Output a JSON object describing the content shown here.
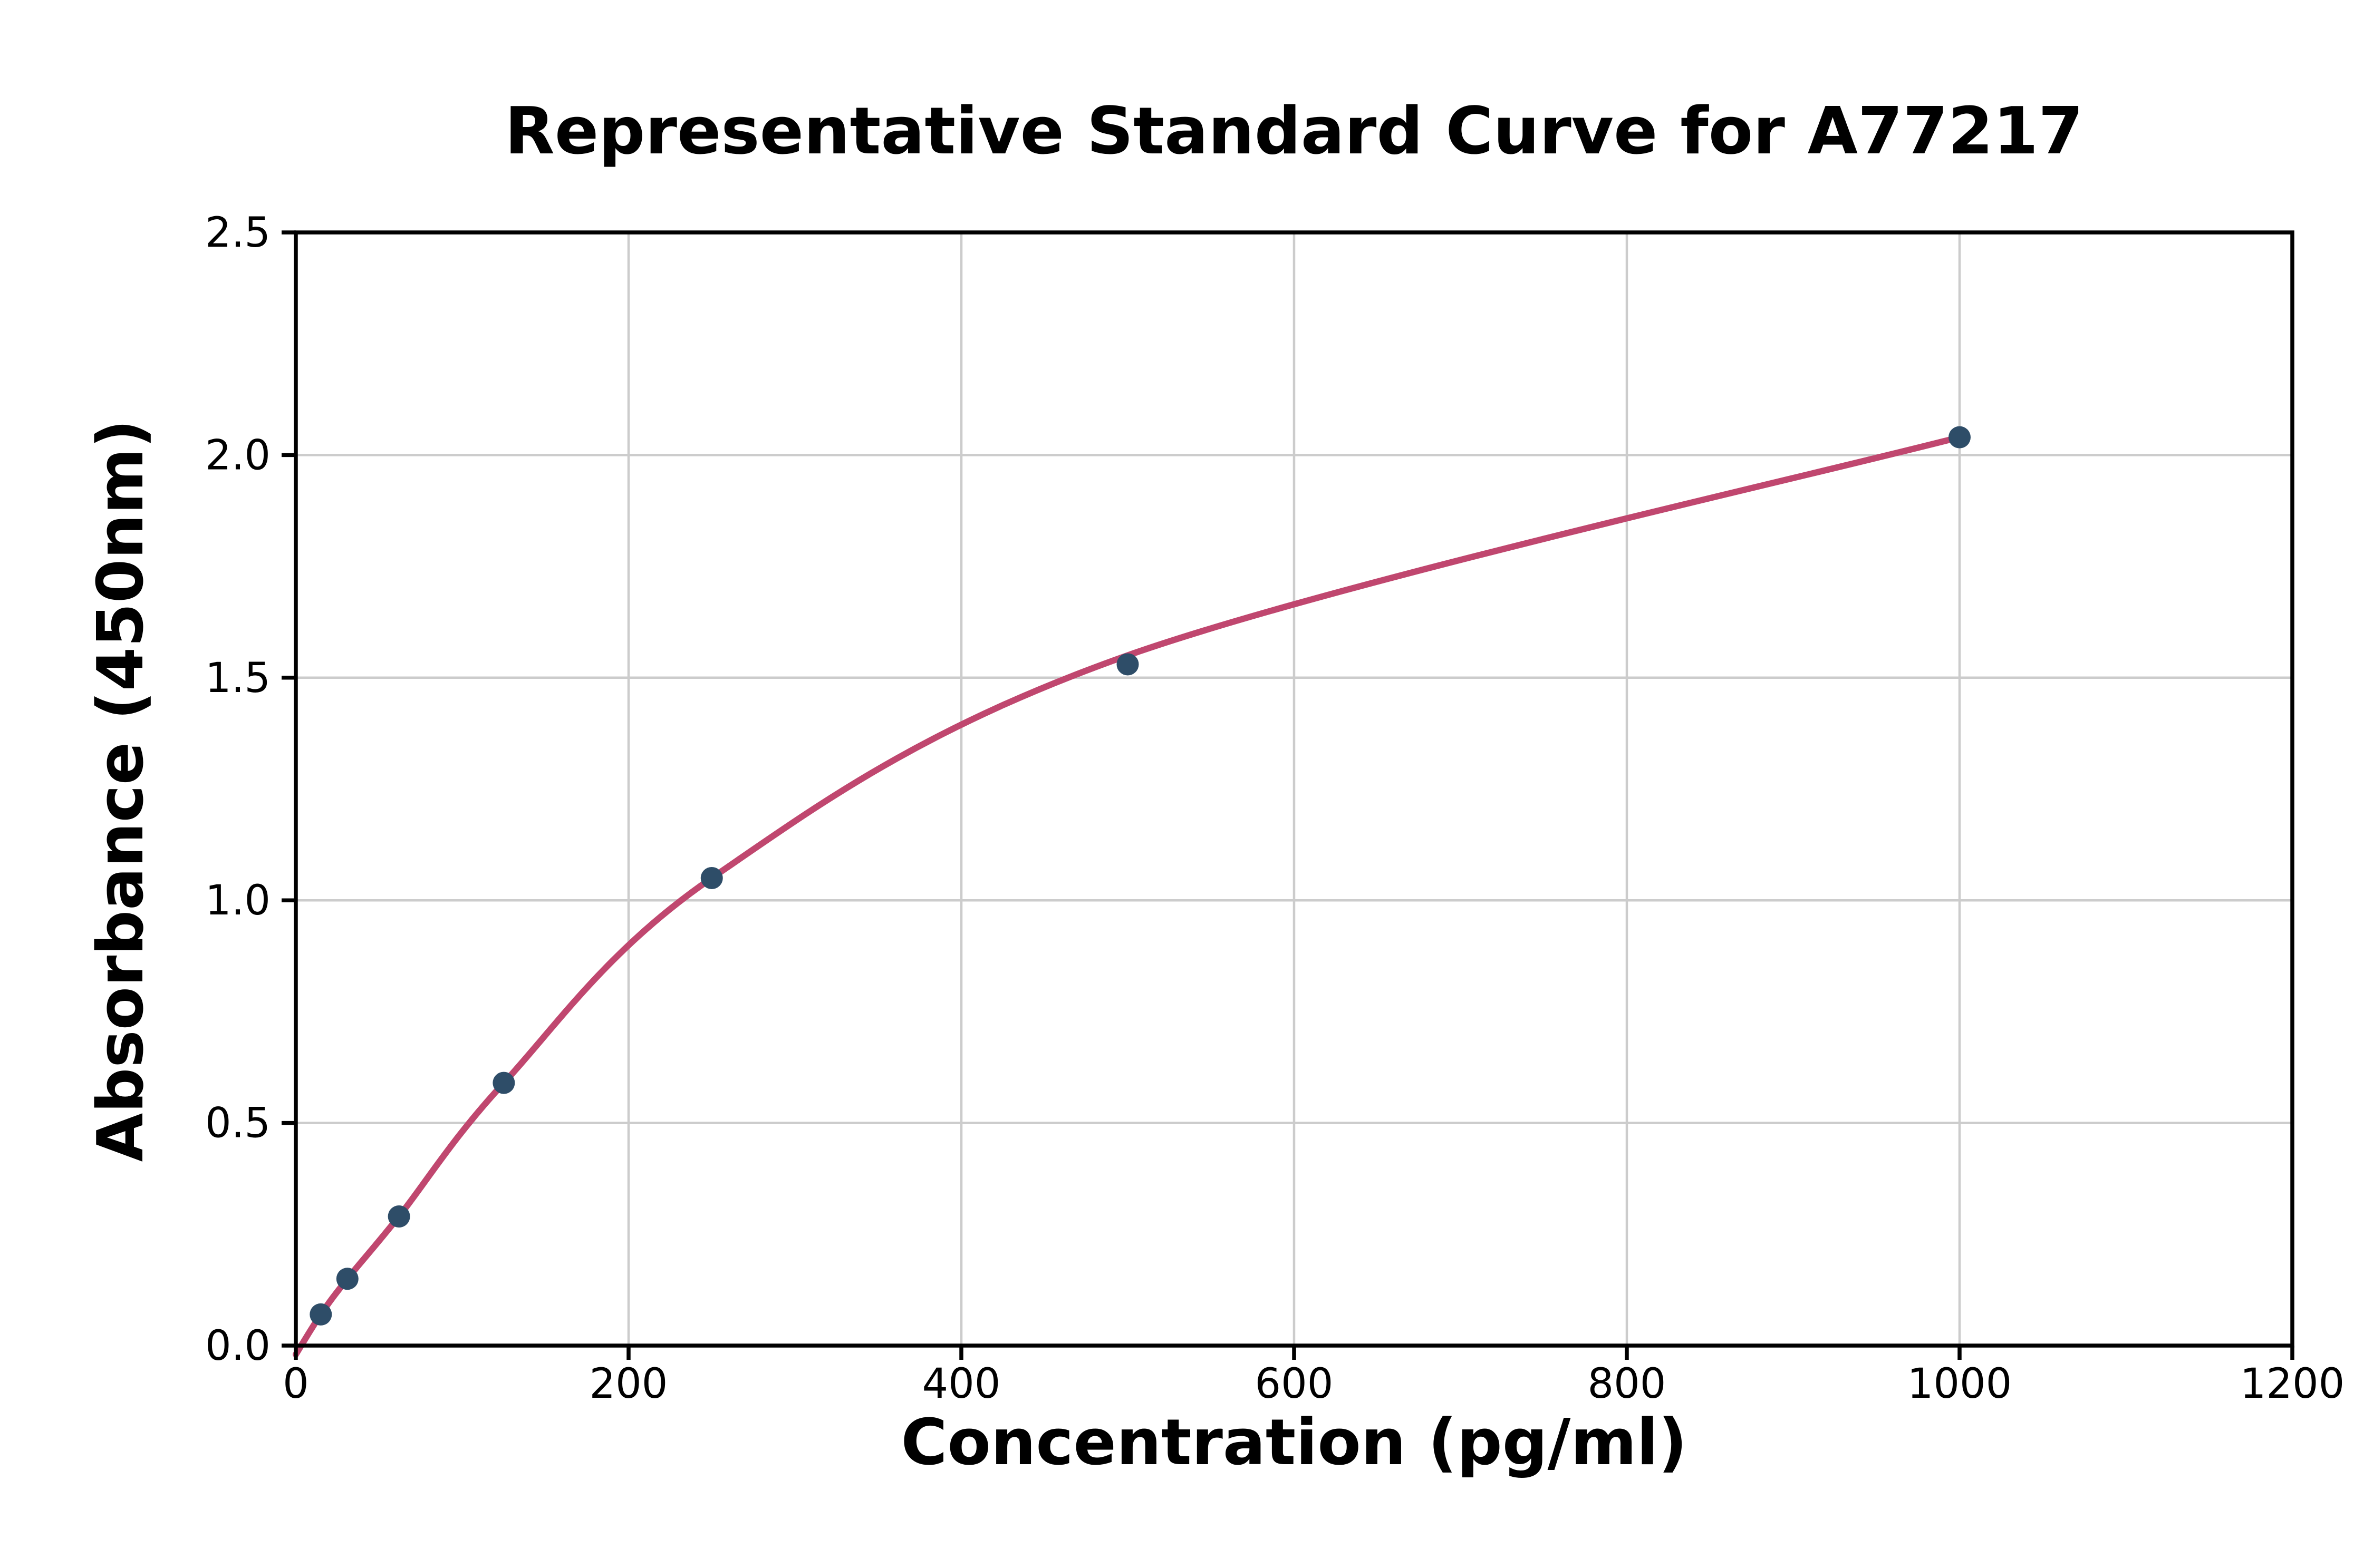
{
  "chart_data": {
    "type": "scatter",
    "title": "Representative Standard Curve for A77217",
    "xlabel": "Concentration (pg/ml)",
    "ylabel": "Absorbance (450nm)",
    "xlim": [
      0,
      1200
    ],
    "ylim": [
      0,
      2.5
    ],
    "xticks": [
      0,
      200,
      400,
      600,
      800,
      1000,
      1200
    ],
    "xtick_labels": [
      "0",
      "200",
      "400",
      "600",
      "800",
      "1000",
      "1200"
    ],
    "yticks": [
      0,
      0.5,
      1.0,
      1.5,
      2.0,
      2.5
    ],
    "ytick_labels": [
      "0.0",
      "0.5",
      "1.0",
      "1.5",
      "2.0",
      "2.5"
    ],
    "grid": true,
    "legend": "none",
    "points": [
      [
        15,
        0.07
      ],
      [
        31,
        0.15
      ],
      [
        62,
        0.29
      ],
      [
        125,
        0.59
      ],
      [
        250,
        1.05
      ],
      [
        500,
        1.53
      ],
      [
        1000,
        2.04
      ]
    ],
    "curve_points": [
      [
        0,
        -0.02
      ],
      [
        15,
        0.07
      ],
      [
        31,
        0.15
      ],
      [
        62,
        0.29
      ],
      [
        125,
        0.59
      ],
      [
        250,
        1.05
      ],
      [
        500,
        1.55
      ],
      [
        1000,
        2.04
      ]
    ],
    "point_color": "#2e4d68",
    "curve_color": "#c0476f",
    "grid_color": "#cccccc",
    "axis_color": "#000000",
    "background_color": "#ffffff"
  }
}
